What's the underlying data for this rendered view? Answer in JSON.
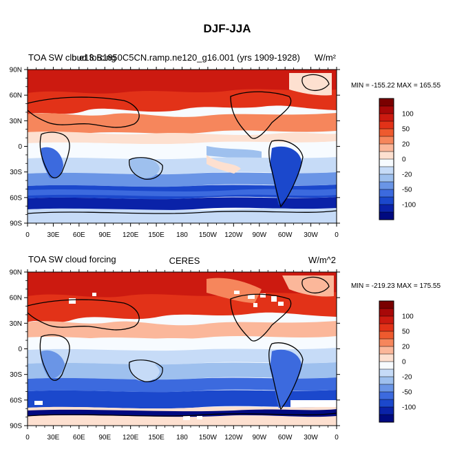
{
  "figure_title": "DJF-JJA",
  "chart_data": [
    {
      "type": "heatmap",
      "title_left": "TOA SW cloud forcing",
      "title_center": "b.e13.B1850C5CN.ramp.ne120_g16.001 (yrs 1909-1928)",
      "units": "W/m²",
      "stats": "MIN = -155.22 MAX = 165.55",
      "x_ticks": [
        "0",
        "30E",
        "60E",
        "90E",
        "120E",
        "150E",
        "180",
        "150W",
        "120W",
        "90W",
        "60W",
        "30W",
        "0"
      ],
      "y_ticks": [
        "90N",
        "60N",
        "30N",
        "0",
        "30S",
        "60S",
        "90S"
      ],
      "colorbar_labels": [
        "100",
        "50",
        "20",
        "0",
        "-20",
        "-50",
        "-100"
      ]
    },
    {
      "type": "heatmap",
      "title_left": "TOA SW cloud forcing",
      "title_center": "CERES",
      "units": "W/m^2",
      "stats": "MIN = -219.23 MAX = 175.55",
      "x_ticks": [
        "0",
        "30E",
        "60E",
        "90E",
        "120E",
        "150E",
        "180",
        "150W",
        "120W",
        "90W",
        "60W",
        "30W",
        "0"
      ],
      "y_ticks": [
        "90N",
        "60N",
        "30N",
        "0",
        "30S",
        "60S",
        "90S"
      ],
      "colorbar_labels": [
        "100",
        "50",
        "20",
        "0",
        "-20",
        "-50",
        "-100"
      ]
    }
  ],
  "colorbar_colors": [
    "#7a0000",
    "#a80808",
    "#cc1a10",
    "#e23218",
    "#ee5a2e",
    "#f6865c",
    "#fbb79a",
    "#fde0d0",
    "#f7fbff",
    "#c6dbf7",
    "#9ec0ee",
    "#6a95e6",
    "#3c6ade",
    "#1b48cc",
    "#0a22a8",
    "#000a80"
  ]
}
